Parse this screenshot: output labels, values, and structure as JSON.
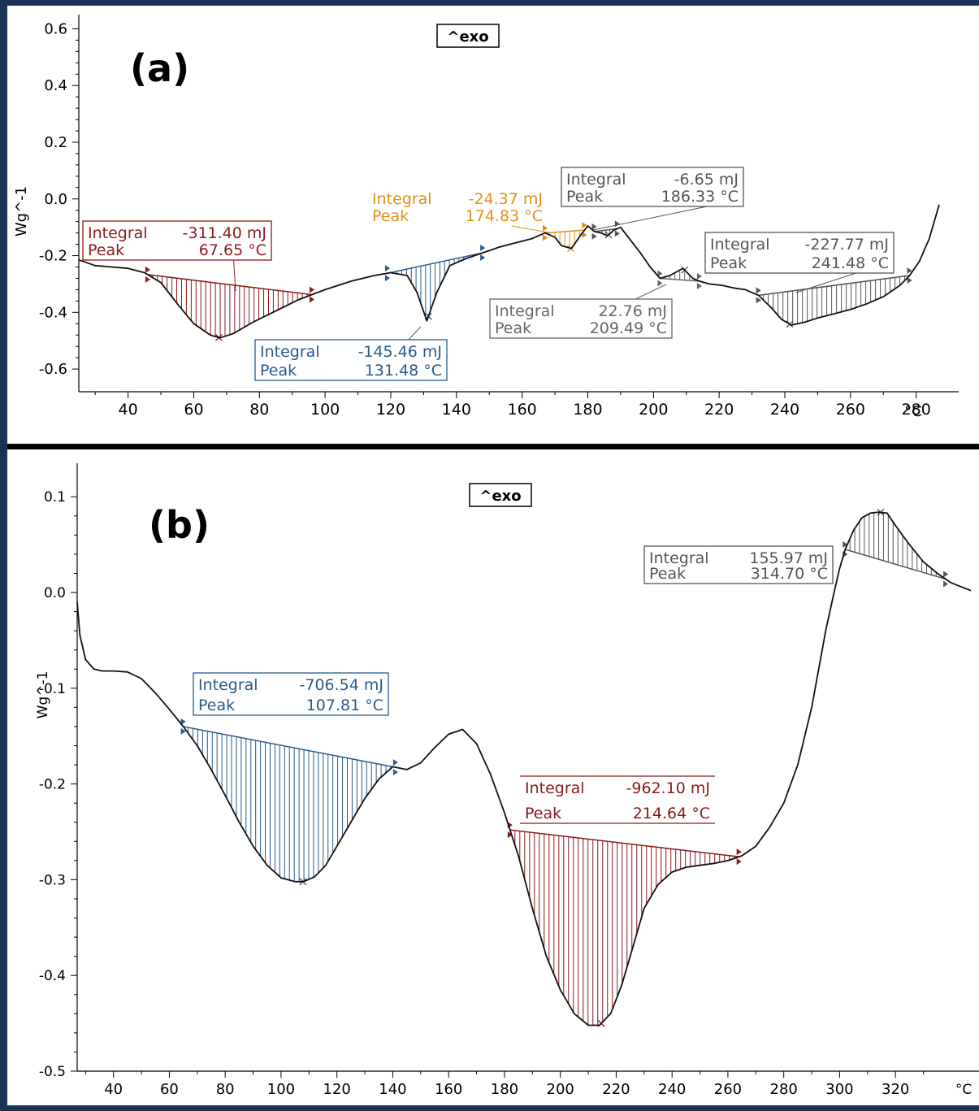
{
  "chart_data": [
    {
      "type": "line",
      "panel_label": "(a)",
      "exo_label": "^exo",
      "ylabel": "Wg^-1",
      "xlabel": "°C",
      "xlim": [
        25,
        288
      ],
      "ylim": [
        -0.68,
        0.65
      ],
      "x_ticks": [
        40,
        60,
        80,
        100,
        120,
        140,
        160,
        180,
        200,
        220,
        240,
        260,
        280
      ],
      "y_ticks": [
        "0.6",
        "0.4",
        "0.2",
        "0.0",
        "-0.2",
        "-0.4",
        "-0.6"
      ],
      "y_tick_values": [
        0.6,
        0.4,
        0.2,
        0.0,
        -0.2,
        -0.4,
        -0.6
      ],
      "series": [
        {
          "x": [
            25,
            30,
            35,
            40,
            45,
            50,
            55,
            60,
            65,
            68,
            72,
            78,
            85,
            92,
            100,
            108,
            115,
            120,
            125,
            128,
            131,
            134,
            138,
            143,
            148,
            153,
            158,
            163,
            167,
            170,
            172,
            175,
            178,
            180,
            182,
            184,
            186,
            188,
            190,
            193,
            196,
            199,
            202,
            205,
            209,
            212,
            214,
            217,
            221,
            225,
            228,
            232,
            236,
            239,
            242,
            246,
            250,
            255,
            260,
            265,
            270,
            275,
            278,
            281,
            284,
            287
          ],
          "y": [
            -0.215,
            -0.235,
            -0.24,
            -0.245,
            -0.26,
            -0.295,
            -0.37,
            -0.44,
            -0.48,
            -0.49,
            -0.475,
            -0.435,
            -0.395,
            -0.355,
            -0.32,
            -0.29,
            -0.27,
            -0.26,
            -0.27,
            -0.33,
            -0.43,
            -0.33,
            -0.235,
            -0.21,
            -0.19,
            -0.17,
            -0.155,
            -0.14,
            -0.12,
            -0.135,
            -0.165,
            -0.175,
            -0.125,
            -0.095,
            -0.115,
            -0.12,
            -0.13,
            -0.11,
            -0.1,
            -0.145,
            -0.19,
            -0.24,
            -0.28,
            -0.27,
            -0.245,
            -0.28,
            -0.29,
            -0.3,
            -0.305,
            -0.315,
            -0.32,
            -0.34,
            -0.385,
            -0.425,
            -0.445,
            -0.435,
            -0.42,
            -0.405,
            -0.39,
            -0.37,
            -0.345,
            -0.305,
            -0.27,
            -0.22,
            -0.14,
            -0.02
          ]
        }
      ],
      "peaks": [
        {
          "integral_label": "Integral",
          "integral": "-311.40 mJ",
          "peak_label": "Peak",
          "peak": "67.65 °C",
          "color": "#8b1a1a",
          "x_start": 46,
          "x_end": 96,
          "peak_x": 67.65
        },
        {
          "integral_label": "Integral",
          "integral": "-145.46 mJ",
          "peak_label": "Peak",
          "peak": "131.48 °C",
          "color": "#2a5a8c",
          "x_start": 119,
          "x_end": 148,
          "peak_x": 131.48
        },
        {
          "integral_label": "Integral",
          "integral": "-24.37 mJ",
          "peak_label": "Peak",
          "peak": "174.83 °C",
          "color": "#e0901a",
          "x_start": 167,
          "x_end": 179,
          "peak_x": 174.83
        },
        {
          "integral_label": "Integral",
          "integral": "-6.65 mJ",
          "peak_label": "Peak",
          "peak": "186.33 °C",
          "color": "#555555",
          "x_start": 182,
          "x_end": 189,
          "peak_x": 186.33
        },
        {
          "integral_label": "Integral",
          "integral": "22.76 mJ",
          "peak_label": "Peak",
          "peak": "209.49 °C",
          "color": "#666666",
          "x_start": 202,
          "x_end": 214,
          "peak_x": 209.49
        },
        {
          "integral_label": "Integral",
          "integral": "-227.77 mJ",
          "peak_label": "Peak",
          "peak": "241.48 °C",
          "color": "#555555",
          "x_start": 232,
          "x_end": 278,
          "peak_x": 241.48
        }
      ]
    },
    {
      "type": "line",
      "panel_label": "(b)",
      "exo_label": "^exo",
      "ylabel": "Wg^-1",
      "xlabel": "°C",
      "xlim": [
        27,
        347
      ],
      "ylim": [
        -0.5,
        0.135
      ],
      "x_ticks": [
        40,
        60,
        80,
        100,
        120,
        140,
        160,
        180,
        200,
        220,
        240,
        260,
        280,
        300,
        320
      ],
      "y_ticks": [
        "0.1",
        "0.0",
        "-0.1",
        "-0.2",
        "-0.3",
        "-0.4",
        "-0.5"
      ],
      "y_tick_values": [
        0.1,
        0.0,
        -0.1,
        -0.2,
        -0.3,
        -0.4,
        -0.5
      ],
      "series": [
        {
          "x": [
            27,
            28,
            30,
            33,
            36,
            40,
            45,
            50,
            55,
            60,
            65,
            70,
            75,
            80,
            85,
            90,
            95,
            100,
            105,
            108,
            112,
            116,
            120,
            125,
            130,
            135,
            140,
            145,
            150,
            155,
            160,
            165,
            170,
            175,
            180,
            185,
            190,
            195,
            200,
            205,
            210,
            214,
            218,
            222,
            226,
            230,
            235,
            240,
            245,
            250,
            255,
            260,
            265,
            270,
            275,
            280,
            285,
            290,
            295,
            298,
            300,
            302,
            305,
            308,
            311,
            314,
            317,
            320,
            325,
            330,
            335,
            340,
            347
          ],
          "y": [
            -0.01,
            -0.045,
            -0.07,
            -0.08,
            -0.082,
            -0.082,
            -0.083,
            -0.09,
            -0.105,
            -0.122,
            -0.14,
            -0.16,
            -0.185,
            -0.212,
            -0.24,
            -0.265,
            -0.285,
            -0.298,
            -0.302,
            -0.302,
            -0.297,
            -0.285,
            -0.265,
            -0.24,
            -0.215,
            -0.195,
            -0.182,
            -0.185,
            -0.178,
            -0.162,
            -0.148,
            -0.143,
            -0.158,
            -0.19,
            -0.23,
            -0.275,
            -0.33,
            -0.38,
            -0.415,
            -0.44,
            -0.452,
            -0.452,
            -0.44,
            -0.41,
            -0.37,
            -0.33,
            -0.305,
            -0.292,
            -0.287,
            -0.285,
            -0.283,
            -0.28,
            -0.275,
            -0.265,
            -0.245,
            -0.22,
            -0.18,
            -0.12,
            -0.04,
            0.0,
            0.025,
            0.045,
            0.065,
            0.078,
            0.083,
            0.084,
            0.083,
            0.07,
            0.05,
            0.032,
            0.02,
            0.01,
            0.002
          ]
        }
      ],
      "peaks": [
        {
          "integral_label": "Integral",
          "integral": "-706.54 mJ",
          "peak_label": "Peak",
          "peak": "107.81 °C",
          "color": "#2a5a8c",
          "x_start": 65,
          "x_end": 141,
          "peak_x": 107.81
        },
        {
          "integral_label": "Integral",
          "integral": "-962.10 mJ",
          "peak_label": "Peak",
          "peak": "214.64 °C",
          "color": "#8b1a1a",
          "x_start": 182,
          "x_end": 264,
          "peak_x": 214.64
        },
        {
          "integral_label": "Integral",
          "integral": "155.97 mJ",
          "peak_label": "Peak",
          "peak": "314.70 °C",
          "color": "#555555",
          "x_start": 302,
          "x_end": 338,
          "peak_x": 314.7
        }
      ]
    }
  ]
}
